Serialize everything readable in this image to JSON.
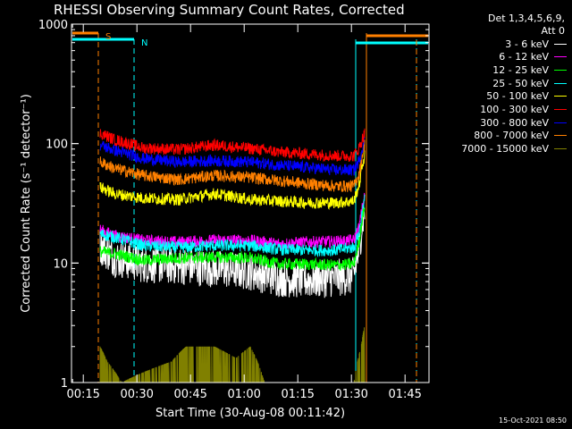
{
  "chart_data": {
    "type": "line",
    "title": "RHESSI Observing Summary Count Rates, Corrected",
    "xlabel": "Start Time (30-Aug-08 00:11:42)",
    "ylabel": "Corrected Count Rate (s⁻¹ detector⁻¹)",
    "xlim_minutes": [
      0,
      100
    ],
    "ylim": [
      1,
      1000
    ],
    "yscale": "log",
    "x_ticks": [
      {
        "m": 3.3,
        "label": "00:15"
      },
      {
        "m": 18.3,
        "label": "00:30"
      },
      {
        "m": 33.3,
        "label": "00:45"
      },
      {
        "m": 48.3,
        "label": "01:00"
      },
      {
        "m": 63.3,
        "label": "01:15"
      },
      {
        "m": 78.3,
        "label": "01:30"
      },
      {
        "m": 93.3,
        "label": "01:45"
      }
    ],
    "y_ticks": [
      {
        "v": 1,
        "label": "1"
      },
      {
        "v": 10,
        "label": "10"
      },
      {
        "v": 100,
        "label": "100"
      },
      {
        "v": 1000,
        "label": "1000"
      }
    ],
    "detectors": "Det 1,3,4,5,6,9,",
    "attenuator": "Att 0",
    "series": [
      {
        "name": "3 - 6 keV",
        "color": "#ffffff",
        "points": [
          [
            8,
            14
          ],
          [
            12,
            11
          ],
          [
            20,
            9.8
          ],
          [
            30,
            9.5
          ],
          [
            40,
            9
          ],
          [
            50,
            8.5
          ],
          [
            58,
            7.5
          ],
          [
            66,
            7.2
          ],
          [
            74,
            7.5
          ],
          [
            79,
            7.8
          ],
          [
            80.5,
            13
          ],
          [
            82,
            28
          ]
        ]
      },
      {
        "name": "6 - 12 keV",
        "color": "#ff00ff",
        "points": [
          [
            8,
            19
          ],
          [
            12,
            17
          ],
          [
            20,
            15.5
          ],
          [
            30,
            15
          ],
          [
            40,
            15.5
          ],
          [
            50,
            15.5
          ],
          [
            58,
            14.5
          ],
          [
            66,
            15
          ],
          [
            74,
            15.2
          ],
          [
            79,
            15.5
          ],
          [
            80.5,
            20
          ],
          [
            82,
            36
          ]
        ]
      },
      {
        "name": "12 - 25 keV",
        "color": "#00ff00",
        "points": [
          [
            8,
            12.5
          ],
          [
            12,
            12
          ],
          [
            20,
            10.5
          ],
          [
            30,
            11
          ],
          [
            40,
            11.2
          ],
          [
            50,
            11
          ],
          [
            58,
            9.8
          ],
          [
            66,
            9.8
          ],
          [
            74,
            9.6
          ],
          [
            79,
            9.8
          ],
          [
            80.5,
            15
          ],
          [
            82,
            30
          ]
        ]
      },
      {
        "name": "25 - 50 keV",
        "color": "#00ffff",
        "points": [
          [
            8,
            17.5
          ],
          [
            12,
            16.5
          ],
          [
            20,
            14
          ],
          [
            30,
            13.5
          ],
          [
            40,
            14
          ],
          [
            50,
            14
          ],
          [
            58,
            13
          ],
          [
            66,
            12.8
          ],
          [
            74,
            12.8
          ],
          [
            79,
            13.5
          ],
          [
            80.5,
            18
          ],
          [
            82,
            34
          ]
        ]
      },
      {
        "name": "50 - 100 keV",
        "color": "#ffff00",
        "points": [
          [
            8,
            43
          ],
          [
            12,
            38
          ],
          [
            20,
            35
          ],
          [
            30,
            34
          ],
          [
            40,
            38
          ],
          [
            50,
            34
          ],
          [
            58,
            33
          ],
          [
            66,
            32
          ],
          [
            74,
            32
          ],
          [
            79,
            33
          ],
          [
            80.5,
            45
          ],
          [
            82,
            80
          ]
        ]
      },
      {
        "name": "100 - 300 keV",
        "color": "#ff0000",
        "points": [
          [
            8,
            122
          ],
          [
            12,
            108
          ],
          [
            20,
            92
          ],
          [
            30,
            89
          ],
          [
            40,
            97
          ],
          [
            50,
            91
          ],
          [
            58,
            85
          ],
          [
            66,
            82
          ],
          [
            74,
            79
          ],
          [
            79,
            79
          ],
          [
            80.5,
            92
          ],
          [
            82,
            122
          ]
        ]
      },
      {
        "name": "300 - 800 keV",
        "color": "#0000ff",
        "points": [
          [
            8,
            97
          ],
          [
            12,
            88
          ],
          [
            20,
            75
          ],
          [
            30,
            70
          ],
          [
            40,
            72
          ],
          [
            50,
            70
          ],
          [
            58,
            66
          ],
          [
            66,
            63
          ],
          [
            74,
            60
          ],
          [
            79,
            60
          ],
          [
            80.5,
            72
          ],
          [
            82,
            108
          ]
        ]
      },
      {
        "name": "800 - 7000 keV",
        "color": "#ff8000",
        "points": [
          [
            8,
            70
          ],
          [
            12,
            62
          ],
          [
            20,
            54
          ],
          [
            30,
            50
          ],
          [
            40,
            54
          ],
          [
            50,
            52
          ],
          [
            58,
            49
          ],
          [
            66,
            46
          ],
          [
            74,
            44
          ],
          [
            79,
            44
          ],
          [
            80.5,
            56
          ],
          [
            82,
            98
          ]
        ]
      },
      {
        "name": "7000 - 15000 keV",
        "color": "#808000",
        "points": [
          [
            8,
            2
          ],
          [
            10,
            1.5
          ],
          [
            14,
            1
          ],
          [
            28,
            1.5
          ],
          [
            32,
            2
          ],
          [
            40,
            2
          ],
          [
            46,
            1.6
          ],
          [
            50,
            2
          ],
          [
            54,
            1
          ],
          [
            79,
            1
          ],
          [
            81,
            2
          ],
          [
            82,
            3
          ]
        ]
      }
    ],
    "annotations": [
      {
        "label": "S",
        "color": "#ff8000"
      },
      {
        "label": "N",
        "color": "#00ffff"
      }
    ]
  },
  "timestamp": "15-Oct-2021 08:50"
}
